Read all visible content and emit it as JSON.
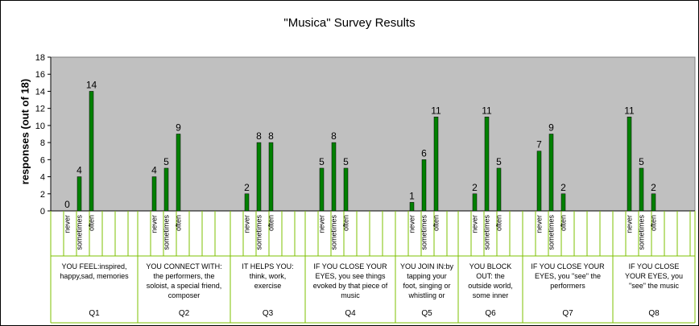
{
  "chart_data": {
    "type": "bar",
    "title": "\"Musica\" Survey Results",
    "ylabel": "responses (out of 18)",
    "ylim": [
      0,
      18
    ],
    "ytick_step": 2,
    "grid": false,
    "levels": [
      "never",
      "sometimes",
      "often"
    ],
    "questions": [
      {
        "label": "Q1",
        "description_lines": [
          "YOU FEEL:inspired,",
          "happy,sad, memories"
        ],
        "values": [
          0,
          4,
          14
        ]
      },
      {
        "label": "Q2",
        "description_lines": [
          "YOU CONNECT WITH:",
          "the performers, the",
          "soloist, a special friend,",
          "composer"
        ],
        "values": [
          4,
          5,
          9
        ]
      },
      {
        "label": "Q3",
        "description_lines": [
          "IT HELPS YOU:",
          "think, work,",
          "exercise"
        ],
        "values": [
          2,
          8,
          8
        ]
      },
      {
        "label": "Q4",
        "description_lines": [
          "IF YOU CLOSE YOUR",
          "EYES, you see things",
          "evoked by that piece of",
          "music"
        ],
        "values": [
          5,
          8,
          5
        ]
      },
      {
        "label": "Q5",
        "description_lines": [
          "YOU JOIN IN:by",
          "tapping your",
          "foot, singing or",
          "whistling or"
        ],
        "values": [
          1,
          6,
          11
        ]
      },
      {
        "label": "Q6",
        "description_lines": [
          "YOU BLOCK",
          "OUT: the",
          "outside world,",
          "some inner"
        ],
        "values": [
          2,
          11,
          5
        ]
      },
      {
        "label": "Q7",
        "description_lines": [
          "IF YOU CLOSE YOUR",
          "EYES, you \"see\" the",
          "performers"
        ],
        "values": [
          7,
          9,
          2
        ]
      },
      {
        "label": "Q8",
        "description_lines": [
          "IF YOU CLOSE",
          "YOUR EYES, you",
          "\"see\" the music"
        ],
        "values": [
          11,
          5,
          2
        ]
      }
    ]
  },
  "colors": {
    "plot_background": "#c0c0c0",
    "bar_fill": "#008000",
    "bar_outline": "#000000",
    "axis_line": "#808080",
    "category_separator": "#7cc000"
  }
}
